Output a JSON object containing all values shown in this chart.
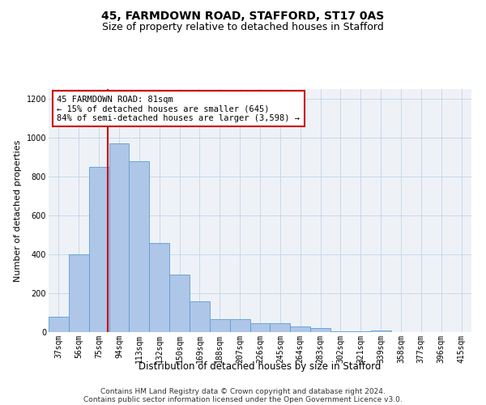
{
  "title": "45, FARMDOWN ROAD, STAFFORD, ST17 0AS",
  "subtitle": "Size of property relative to detached houses in Stafford",
  "xlabel": "Distribution of detached houses by size in Stafford",
  "ylabel": "Number of detached properties",
  "categories": [
    "37sqm",
    "56sqm",
    "75sqm",
    "94sqm",
    "113sqm",
    "132sqm",
    "150sqm",
    "169sqm",
    "188sqm",
    "207sqm",
    "226sqm",
    "245sqm",
    "264sqm",
    "283sqm",
    "302sqm",
    "321sqm",
    "339sqm",
    "358sqm",
    "377sqm",
    "396sqm",
    "415sqm"
  ],
  "values": [
    80,
    400,
    850,
    970,
    880,
    460,
    295,
    160,
    65,
    65,
    47,
    47,
    30,
    20,
    5,
    3,
    8,
    2,
    2,
    2,
    2
  ],
  "bar_color": "#aec6e8",
  "bar_edge_color": "#5a9fd4",
  "grid_color": "#c8d8e8",
  "background_color": "#eef2f7",
  "vline_color": "#cc0000",
  "annotation_text": "45 FARMDOWN ROAD: 81sqm\n← 15% of detached houses are smaller (645)\n84% of semi-detached houses are larger (3,598) →",
  "annotation_box_color": "#ffffff",
  "annotation_box_edge_color": "#cc0000",
  "ylim": [
    0,
    1250
  ],
  "yticks": [
    0,
    200,
    400,
    600,
    800,
    1000,
    1200
  ],
  "footer_line1": "Contains HM Land Registry data © Crown copyright and database right 2024.",
  "footer_line2": "Contains public sector information licensed under the Open Government Licence v3.0.",
  "title_fontsize": 10,
  "subtitle_fontsize": 9,
  "xlabel_fontsize": 8.5,
  "ylabel_fontsize": 8,
  "tick_fontsize": 7,
  "footer_fontsize": 6.5,
  "annotation_fontsize": 7.5
}
